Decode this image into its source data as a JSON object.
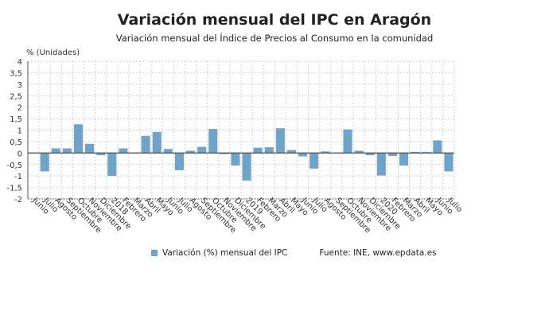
{
  "header": {
    "title": "Variación mensual del IPC en Aragón",
    "subtitle": "Variación mensual del Índice de Precios al Consumo en la comunidad"
  },
  "legend": {
    "label": "Variación (%) mensual del IPC"
  },
  "source": "Fuente: INE, www.epdata.es",
  "colors": {
    "bar": "#6fa3c8",
    "zero_line": "#555555",
    "grid": "#d0d0d0"
  },
  "chart_data": {
    "type": "bar",
    "ylabel": "% (Unidades)",
    "ylim": [
      -2,
      4
    ],
    "yticks": [
      "-2",
      "-1,5",
      "-1",
      "-0,5",
      "0",
      "0,5",
      "1",
      "1,5",
      "2",
      "2,5",
      "3",
      "3,5",
      "4"
    ],
    "grid": true,
    "legend_position": "bottom",
    "categories": [
      "Junio",
      "Julio",
      "Agosto",
      "Septiembre",
      "Octubre",
      "Noviembre",
      "Diciembre",
      "2018",
      "Febrero",
      "Marzo",
      "Abril",
      "Mayo",
      "Junio",
      "Julio",
      "Agosto",
      "Septiembre",
      "Octubre",
      "Noviembre",
      "Diciembre",
      "2019",
      "Febrero",
      "Marzo",
      "Abril",
      "Mayo",
      "Junio",
      "Julio",
      "Agosto",
      "Septiembre",
      "Octubre",
      "Noviembre",
      "Diciembre",
      "2020",
      "Febrero",
      "Marzo",
      "Abril",
      "Mayo",
      "Junio",
      "Julio"
    ],
    "series": [
      {
        "name": "Variación (%) mensual del IPC",
        "values": [
          0,
          -0.8,
          0.2,
          0.2,
          1.25,
          0.4,
          -0.1,
          -1.0,
          0.2,
          0.02,
          0.75,
          0.92,
          0.18,
          -0.75,
          0.1,
          0.27,
          1.05,
          -0.05,
          -0.55,
          -1.2,
          0.23,
          0.25,
          1.08,
          0.13,
          -0.15,
          -0.68,
          0.07,
          0.0,
          1.03,
          0.1,
          -0.1,
          -0.98,
          -0.13,
          -0.55,
          0.05,
          0.05,
          0.55,
          -0.8
        ]
      }
    ]
  }
}
